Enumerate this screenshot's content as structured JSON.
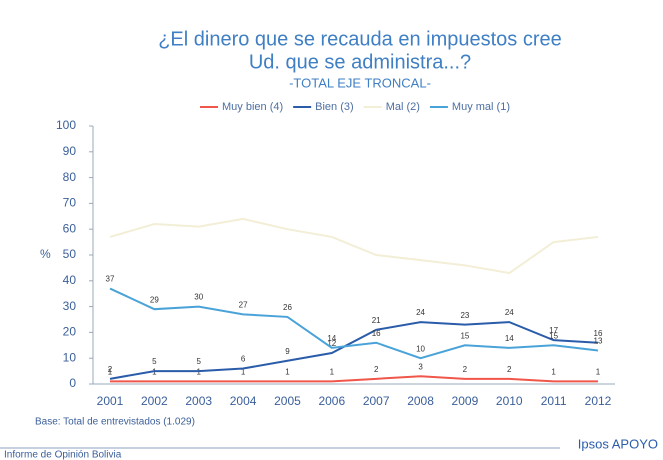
{
  "chart_data": {
    "type": "line",
    "title_lines": [
      "¿El dinero que se recauda en impuestos cree",
      "Ud. que se administra...?"
    ],
    "subtitle": "-TOTAL EJE TRONCAL-",
    "ylabel": "%",
    "categories": [
      "2001",
      "2002",
      "2003",
      "2004",
      "2005",
      "2006",
      "2007",
      "2008",
      "2009",
      "2010",
      "2011",
      "2012"
    ],
    "series": [
      {
        "name": "Muy bien (4)",
        "color": "#f0564a",
        "labels": true,
        "values": [
          1,
          1,
          1,
          1,
          1,
          1,
          2,
          3,
          2,
          2,
          1,
          1
        ]
      },
      {
        "name": "Bien (3)",
        "color": "#2a5caa",
        "labels": true,
        "values": [
          2,
          5,
          5,
          6,
          9,
          12,
          21,
          24,
          23,
          24,
          17,
          16
        ]
      },
      {
        "name": "Mal (2)",
        "color": "#f3eed6",
        "labels": false,
        "values": [
          57,
          62,
          61,
          64,
          60,
          57,
          50,
          48,
          46,
          43,
          55,
          57
        ]
      },
      {
        "name": "Muy mal (1)",
        "color": "#4aa3d8",
        "labels": true,
        "values": [
          37,
          29,
          30,
          27,
          26,
          14,
          16,
          10,
          15,
          14,
          15,
          13
        ]
      }
    ],
    "ylim": [
      0,
      100
    ],
    "yticks": [
      0,
      10,
      20,
      30,
      40,
      50,
      60,
      70,
      80,
      90,
      100
    ],
    "base_note": "Base: Total de entrevistados (1.029)",
    "footer_left": "Informe de Opinión Bolivia",
    "footer_right": "Ipsos APOYO"
  }
}
